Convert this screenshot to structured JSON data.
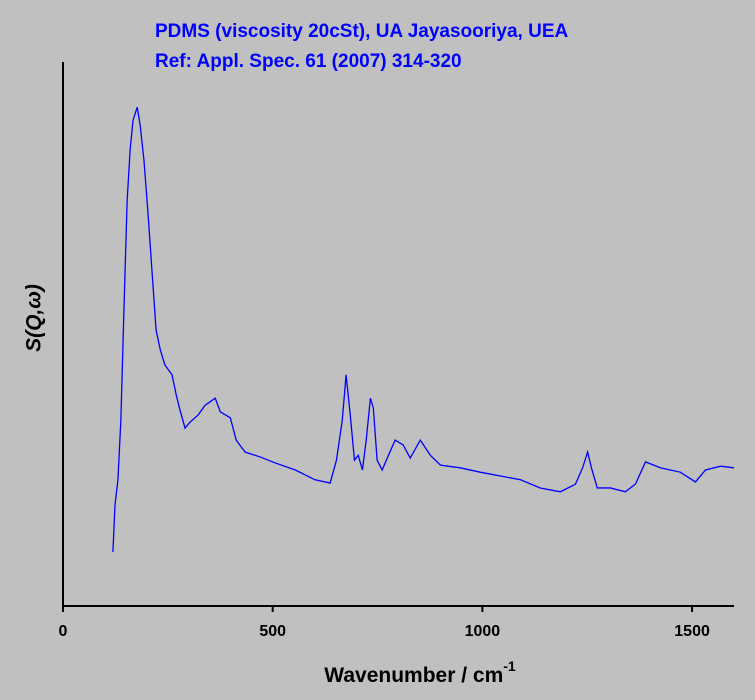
{
  "chart_data": {
    "type": "line",
    "title": [
      "PDMS (viscosity 20cSt), UA Jayasooriya, UEA",
      "Ref: Appl. Spec. 61 (2007) 314-320"
    ],
    "x_label": "Wavenumber / cm",
    "x_label_sup": "-1",
    "y_label": "S(Q,ω)",
    "x": [
      119,
      124,
      131,
      138,
      146,
      153,
      160,
      167,
      177,
      184,
      193,
      203,
      212,
      222,
      232,
      243,
      260,
      270,
      279,
      291,
      303,
      322,
      339,
      363,
      375,
      399,
      413,
      434,
      470,
      506,
      554,
      601,
      637,
      652,
      666,
      675,
      685,
      695,
      704,
      714,
      723,
      733,
      740,
      749,
      761,
      776,
      792,
      811,
      828,
      852,
      876,
      900,
      947,
      995,
      1043,
      1091,
      1138,
      1186,
      1222,
      1239,
      1251,
      1260,
      1274,
      1305,
      1341,
      1365,
      1389,
      1425,
      1472,
      1508,
      1532,
      1568,
      1600
    ],
    "series": [
      {
        "name": "PDMS",
        "color": "#0000ff",
        "values": [
          9.9,
          18.6,
          23.2,
          34.2,
          56.3,
          74.6,
          83.8,
          89.3,
          91.7,
          88.4,
          82,
          71.9,
          61.8,
          50.7,
          47.1,
          44.3,
          42.5,
          38.8,
          36,
          32.7,
          33.8,
          35.1,
          36.9,
          38.2,
          35.7,
          34.6,
          30.5,
          28.3,
          27.4,
          26.3,
          25,
          23.2,
          22.6,
          26.8,
          34.2,
          42.5,
          35.1,
          26.8,
          27.7,
          25,
          30.5,
          38.2,
          36.4,
          26.8,
          25,
          27.7,
          30.5,
          29.6,
          27.2,
          30.5,
          27.7,
          25.9,
          25.4,
          24.6,
          23.9,
          23.2,
          21.7,
          21,
          22.4,
          25.4,
          28.3,
          25.4,
          21.7,
          21.7,
          21,
          22.4,
          26.5,
          25.4,
          24.6,
          22.8,
          25,
          25.7,
          25.4
        ]
      }
    ],
    "xlim": [
      0,
      1600
    ],
    "xticks": [
      0,
      500,
      1000,
      1500
    ],
    "ylim": [
      0,
      100
    ]
  }
}
